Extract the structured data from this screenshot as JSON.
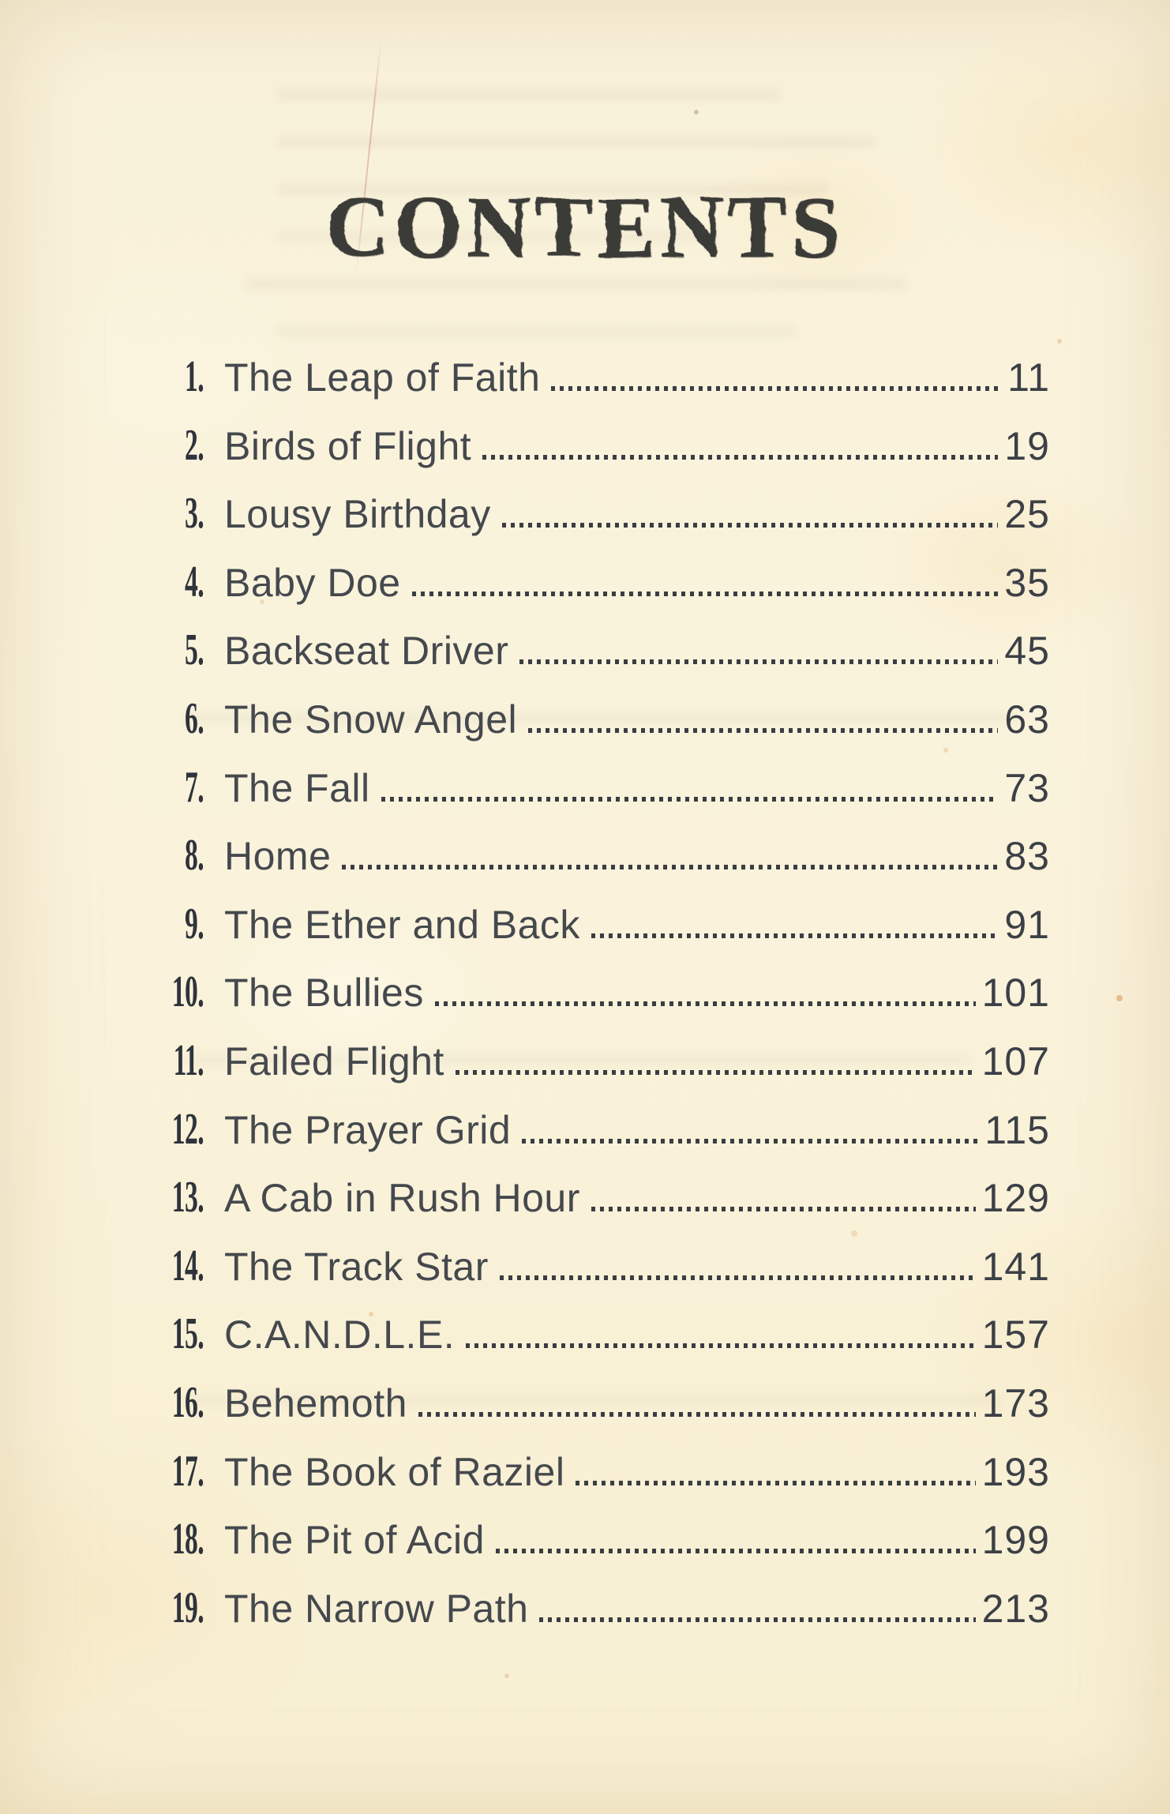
{
  "page": {
    "title": "CONTENTS"
  },
  "toc": {
    "entries": [
      {
        "num": "1.",
        "title": "The Leap of Faith",
        "page": "11"
      },
      {
        "num": "2.",
        "title": "Birds of Flight",
        "page": "19"
      },
      {
        "num": "3.",
        "title": "Lousy Birthday",
        "page": "25"
      },
      {
        "num": "4.",
        "title": "Baby Doe",
        "page": "35"
      },
      {
        "num": "5.",
        "title": "Backseat Driver",
        "page": "45"
      },
      {
        "num": "6.",
        "title": "The Snow Angel",
        "page": "63"
      },
      {
        "num": "7.",
        "title": "The Fall",
        "page": "73"
      },
      {
        "num": "8.",
        "title": "Home",
        "page": "83"
      },
      {
        "num": "9.",
        "title": "The Ether and Back",
        "page": "91"
      },
      {
        "num": "10.",
        "title": "The Bullies",
        "page": "101"
      },
      {
        "num": "11.",
        "title": "Failed Flight",
        "page": "107"
      },
      {
        "num": "12.",
        "title": "The Prayer Grid",
        "page": "115"
      },
      {
        "num": "13.",
        "title": "A Cab in Rush Hour",
        "page": "129"
      },
      {
        "num": "14.",
        "title": "The Track Star",
        "page": "141"
      },
      {
        "num": "15.",
        "title": "C.A.N.D.L.E.",
        "page": "157"
      },
      {
        "num": "16.",
        "title": "Behemoth",
        "page": "173"
      },
      {
        "num": "17.",
        "title": "The Book of Raziel",
        "page": "193"
      },
      {
        "num": "18.",
        "title": "The Pit of Acid",
        "page": "199"
      },
      {
        "num": "19.",
        "title": "The Narrow Path",
        "page": "213"
      }
    ]
  },
  "colors": {
    "paper": "#f9f1d7",
    "title_ink": "#3a3a38",
    "body_ink": "#45494e",
    "number_ink": "#2f333c"
  }
}
